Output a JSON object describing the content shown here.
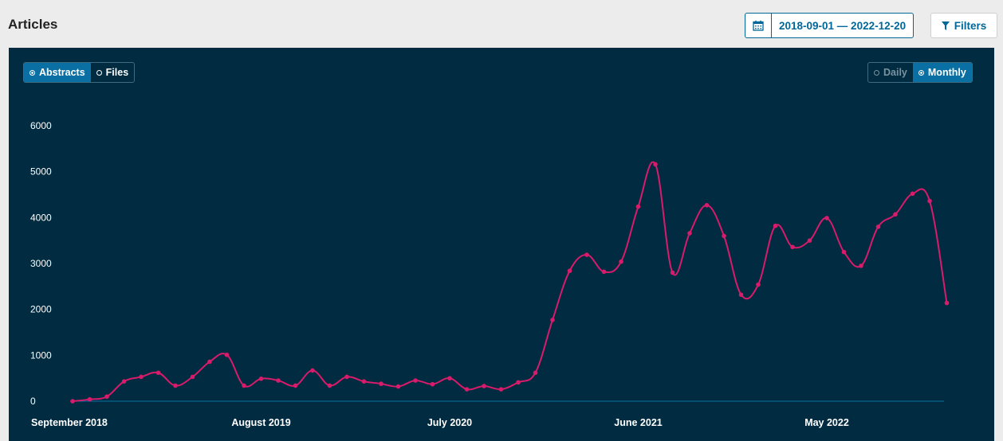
{
  "header": {
    "title": "Articles",
    "date_range": "2018-09-01 — 2022-12-20",
    "filters_label": "Filters",
    "calendar_icon": "calendar-icon",
    "filter_icon": "filter-icon"
  },
  "toggles": {
    "type": [
      {
        "label": "Abstracts",
        "active": true
      },
      {
        "label": "Files",
        "active": false
      }
    ],
    "interval": [
      {
        "label": "Daily",
        "active": false
      },
      {
        "label": "Monthly",
        "active": true
      }
    ]
  },
  "colors": {
    "panel_bg": "#002b40",
    "line": "#d81b6a",
    "accent": "#006798"
  },
  "chart_data": {
    "type": "line",
    "title": "",
    "xlabel": "",
    "ylabel": "",
    "ylim": [
      0,
      6000
    ],
    "yticks": [
      0,
      1000,
      2000,
      3000,
      4000,
      5000,
      6000
    ],
    "x": [
      "2018-09",
      "2018-10",
      "2018-11",
      "2018-12",
      "2019-01",
      "2019-02",
      "2019-03",
      "2019-04",
      "2019-05",
      "2019-06",
      "2019-07",
      "2019-08",
      "2019-09",
      "2019-10",
      "2019-11",
      "2019-12",
      "2020-01",
      "2020-02",
      "2020-03",
      "2020-04",
      "2020-05",
      "2020-06",
      "2020-07",
      "2020-08",
      "2020-09",
      "2020-10",
      "2020-11",
      "2020-12",
      "2021-01",
      "2021-02",
      "2021-03",
      "2021-04",
      "2021-05",
      "2021-06",
      "2021-07",
      "2021-08",
      "2021-09",
      "2021-10",
      "2021-11",
      "2021-12",
      "2022-01",
      "2022-02",
      "2022-03",
      "2022-04",
      "2022-05",
      "2022-06",
      "2022-07",
      "2022-08",
      "2022-09",
      "2022-10",
      "2022-11",
      "2022-12"
    ],
    "xtick_labels": [
      {
        "index": 0,
        "label": "September 2018"
      },
      {
        "index": 11,
        "label": "August 2019"
      },
      {
        "index": 22,
        "label": "July 2020"
      },
      {
        "index": 33,
        "label": "June 2021"
      },
      {
        "index": 44,
        "label": "May 2022"
      }
    ],
    "series": [
      {
        "values": [
          0,
          40,
          100,
          430,
          530,
          620,
          340,
          530,
          860,
          1010,
          340,
          490,
          450,
          340,
          670,
          340,
          530,
          430,
          380,
          320,
          450,
          370,
          500,
          260,
          330,
          260,
          410,
          620,
          1770,
          2840,
          3190,
          2820,
          3040,
          4240,
          5160,
          2800,
          3660,
          4270,
          3600,
          2320,
          2540,
          3820,
          3360,
          3500,
          3990,
          3250,
          2950,
          3800,
          4070,
          4520,
          4360,
          2140
        ]
      }
    ],
    "grid": false,
    "legend": "none"
  }
}
